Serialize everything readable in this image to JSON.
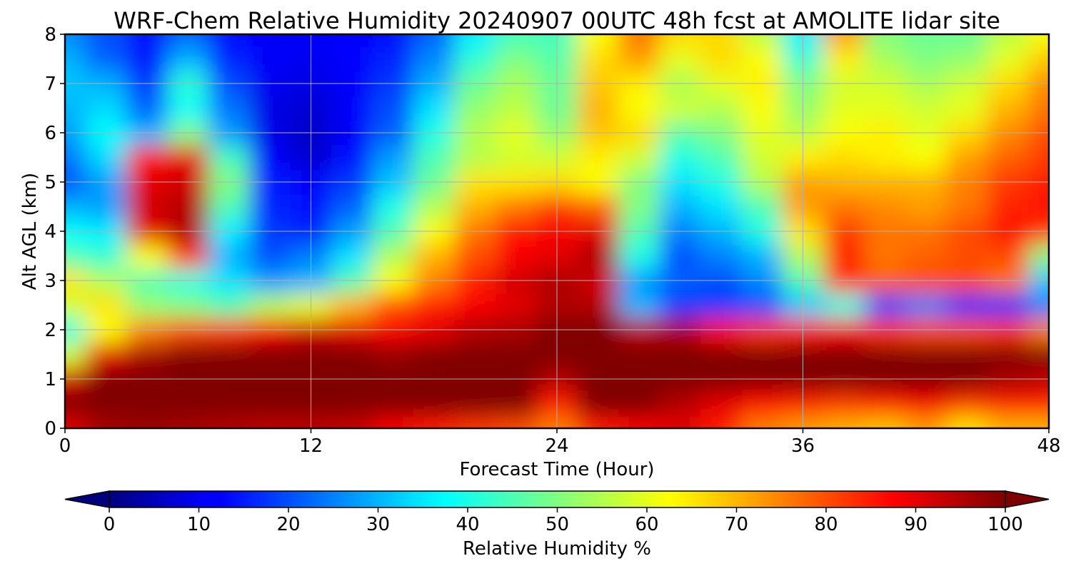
{
  "chart_data": {
    "type": "heatmap",
    "title": "WRF-Chem Relative Humidity 20240907 00UTC 48h fcst at AMOLITE lidar site",
    "xlabel": "Forecast Time (Hour)",
    "ylabel": "Alt AGL (km)",
    "xlim": [
      0,
      48
    ],
    "ylim": [
      0,
      8
    ],
    "x_ticks": [
      0,
      12,
      24,
      36,
      48
    ],
    "y_ticks": [
      0,
      1,
      2,
      3,
      4,
      5,
      6,
      7,
      8
    ],
    "grid": true,
    "x": [
      0,
      2,
      4,
      6,
      8,
      10,
      12,
      14,
      16,
      18,
      20,
      22,
      24,
      26,
      28,
      30,
      32,
      34,
      36,
      38,
      40,
      42,
      44,
      46,
      48
    ],
    "y": [
      0,
      0.5,
      1,
      1.5,
      2,
      2.5,
      3,
      3.5,
      4,
      4.5,
      5,
      5.5,
      6,
      6.5,
      7,
      7.5,
      8
    ],
    "z": [
      [
        90,
        96,
        97,
        96,
        95,
        94,
        94,
        93,
        88,
        85,
        82,
        80,
        75,
        85,
        88,
        90,
        85,
        75,
        72,
        70,
        68,
        72,
        65,
        70,
        70
      ],
      [
        100,
        100,
        100,
        100,
        100,
        100,
        100,
        100,
        100,
        100,
        100,
        100,
        85,
        100,
        100,
        95,
        90,
        86,
        84,
        82,
        84,
        88,
        82,
        84,
        84
      ],
      [
        92,
        100,
        100,
        100,
        100,
        100,
        100,
        100,
        100,
        100,
        100,
        100,
        95,
        100,
        100,
        100,
        100,
        100,
        100,
        100,
        100,
        100,
        100,
        96,
        94
      ],
      [
        58,
        90,
        96,
        100,
        100,
        100,
        100,
        100,
        98,
        100,
        100,
        100,
        100,
        100,
        100,
        100,
        100,
        100,
        100,
        100,
        100,
        100,
        100,
        100,
        100
      ],
      [
        40,
        62,
        75,
        80,
        82,
        88,
        92,
        90,
        88,
        90,
        95,
        96,
        100,
        100,
        94,
        95,
        86,
        82,
        84,
        88,
        82,
        80,
        80,
        82,
        75
      ],
      [
        58,
        65,
        52,
        50,
        45,
        55,
        60,
        70,
        80,
        85,
        88,
        90,
        95,
        95,
        30,
        18,
        18,
        20,
        32,
        40,
        20,
        25,
        18,
        18,
        25
      ],
      [
        65,
        55,
        45,
        40,
        35,
        28,
        30,
        45,
        62,
        75,
        85,
        92,
        96,
        92,
        28,
        22,
        20,
        26,
        45,
        82,
        78,
        80,
        80,
        76,
        32
      ],
      [
        45,
        42,
        62,
        82,
        30,
        20,
        25,
        35,
        55,
        70,
        80,
        88,
        90,
        96,
        40,
        20,
        25,
        30,
        55,
        85,
        76,
        78,
        80,
        80,
        50
      ],
      [
        38,
        36,
        90,
        95,
        36,
        18,
        15,
        28,
        45,
        62,
        76,
        86,
        88,
        90,
        45,
        25,
        30,
        40,
        65,
        82,
        76,
        76,
        80,
        86,
        82
      ],
      [
        30,
        28,
        92,
        95,
        45,
        16,
        14,
        22,
        40,
        55,
        70,
        76,
        82,
        78,
        50,
        30,
        35,
        45,
        72,
        76,
        74,
        72,
        76,
        84,
        86
      ],
      [
        20,
        28,
        90,
        92,
        50,
        15,
        12,
        18,
        32,
        48,
        65,
        65,
        66,
        62,
        50,
        35,
        40,
        55,
        72,
        70,
        70,
        70,
        75,
        82,
        85
      ],
      [
        24,
        34,
        86,
        90,
        44,
        12,
        8,
        14,
        28,
        45,
        55,
        58,
        58,
        64,
        58,
        40,
        45,
        58,
        64,
        66,
        64,
        62,
        72,
        78,
        82
      ],
      [
        28,
        38,
        30,
        50,
        28,
        10,
        7,
        12,
        22,
        40,
        55,
        60,
        52,
        68,
        66,
        46,
        50,
        60,
        56,
        62,
        64,
        60,
        66,
        74,
        80
      ],
      [
        30,
        34,
        22,
        38,
        24,
        10,
        8,
        12,
        20,
        35,
        52,
        56,
        48,
        70,
        62,
        58,
        55,
        62,
        52,
        60,
        60,
        58,
        60,
        70,
        76
      ],
      [
        32,
        30,
        18,
        42,
        20,
        11,
        10,
        12,
        18,
        30,
        48,
        54,
        48,
        68,
        64,
        54,
        60,
        64,
        50,
        58,
        58,
        54,
        58,
        66,
        74
      ],
      [
        30,
        22,
        14,
        30,
        16,
        12,
        11,
        13,
        16,
        26,
        42,
        50,
        46,
        66,
        72,
        60,
        66,
        62,
        42,
        64,
        54,
        50,
        52,
        60,
        68
      ],
      [
        26,
        20,
        14,
        22,
        14,
        12,
        12,
        13,
        14,
        22,
        36,
        44,
        44,
        62,
        76,
        66,
        66,
        56,
        36,
        72,
        50,
        48,
        48,
        56,
        62
      ]
    ],
    "colorbar": {
      "label": "Relative Humidity %",
      "min": 0,
      "max": 100,
      "ticks": [
        0,
        10,
        20,
        30,
        40,
        50,
        60,
        70,
        80,
        90,
        100
      ],
      "colormap": "jet",
      "extend": "both"
    }
  }
}
